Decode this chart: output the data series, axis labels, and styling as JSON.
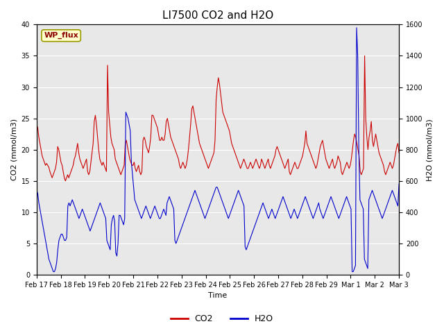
{
  "title": "LI7500 CO2 and H2O",
  "xlabel": "Time",
  "ylabel_left": "CO2 (mmol/m3)",
  "ylabel_right": "H2O (mmol/m3)",
  "ylim_left": [
    0,
    40
  ],
  "ylim_right": [
    0,
    1600
  ],
  "legend_label_co2": "CO2",
  "legend_label_h2o": "H2O",
  "site_label": "WP_flux",
  "co2_color": "#cc0000",
  "h2o_color": "#0000cc",
  "background_color": "#e8e8e8",
  "fig_background": "#ffffff",
  "title_fontsize": 11,
  "axis_fontsize": 8,
  "tick_fontsize": 7,
  "legend_fontsize": 9,
  "line_width": 0.8,
  "xtick_labels": [
    "Feb 17",
    "Feb 18",
    "Feb 19",
    "Feb 20",
    "Feb 21",
    "Feb 22",
    "Feb 23",
    "Feb 24",
    "Feb 25",
    "Feb 26",
    "Feb 27",
    "Feb 28",
    "Feb 29",
    "Mar 1",
    "Mar 2",
    "Mar 3"
  ],
  "xtick_positions": [
    0,
    1,
    2,
    3,
    4,
    5,
    6,
    7,
    8,
    9,
    10,
    11,
    12,
    13,
    14,
    15
  ],
  "co2_data": [
    24.0,
    23.5,
    22.0,
    21.0,
    20.0,
    19.0,
    18.5,
    18.0,
    17.5,
    17.8,
    17.5,
    17.2,
    16.5,
    16.0,
    15.5,
    16.0,
    16.5,
    17.0,
    18.0,
    20.5,
    20.0,
    19.0,
    18.0,
    17.5,
    16.5,
    15.5,
    15.0,
    15.5,
    16.0,
    15.5,
    16.0,
    16.5,
    17.0,
    17.5,
    18.5,
    19.0,
    20.0,
    21.0,
    19.5,
    18.5,
    18.0,
    17.5,
    17.0,
    17.5,
    18.0,
    18.5,
    16.5,
    16.0,
    16.5,
    18.0,
    19.5,
    21.0,
    24.5,
    25.5,
    24.0,
    22.0,
    20.0,
    18.5,
    18.0,
    17.5,
    18.0,
    17.5,
    17.0,
    16.5,
    33.5,
    26.0,
    24.0,
    22.0,
    21.0,
    20.5,
    20.0,
    18.5,
    18.0,
    17.5,
    17.0,
    16.5,
    16.0,
    16.5,
    17.0,
    17.5,
    21.0,
    21.5,
    20.5,
    19.5,
    18.5,
    18.0,
    17.5,
    17.5,
    18.0,
    17.0,
    16.5,
    17.0,
    17.5,
    16.5,
    16.0,
    16.5,
    21.5,
    22.0,
    21.5,
    20.5,
    20.0,
    19.5,
    20.5,
    22.0,
    25.5,
    25.5,
    25.0,
    24.5,
    24.0,
    23.5,
    22.5,
    21.5,
    21.5,
    22.0,
    21.5,
    21.5,
    22.5,
    24.5,
    25.0,
    24.0,
    23.0,
    22.0,
    21.5,
    21.0,
    20.5,
    20.0,
    19.5,
    19.0,
    18.5,
    17.5,
    17.0,
    17.5,
    18.0,
    17.5,
    17.0,
    17.5,
    18.5,
    20.0,
    22.0,
    24.0,
    26.5,
    27.0,
    26.0,
    25.0,
    24.0,
    23.0,
    22.0,
    21.0,
    20.5,
    20.0,
    19.5,
    19.0,
    18.5,
    18.0,
    17.5,
    17.0,
    17.5,
    18.0,
    18.5,
    19.0,
    19.5,
    21.5,
    28.0,
    30.0,
    31.5,
    30.5,
    29.0,
    27.5,
    26.0,
    25.5,
    25.0,
    24.5,
    24.0,
    23.5,
    23.0,
    22.0,
    21.0,
    20.5,
    20.0,
    19.5,
    19.0,
    18.5,
    18.0,
    17.5,
    17.0,
    17.5,
    18.0,
    18.5,
    18.0,
    17.5,
    17.0,
    17.0,
    17.5,
    18.0,
    17.5,
    17.0,
    17.5,
    18.0,
    18.5,
    18.0,
    17.5,
    17.0,
    17.5,
    18.5,
    18.0,
    17.5,
    17.0,
    17.5,
    18.0,
    18.5,
    17.5,
    17.0,
    17.5,
    18.0,
    18.5,
    19.0,
    20.0,
    20.5,
    20.0,
    19.5,
    19.0,
    18.5,
    18.0,
    17.5,
    17.0,
    17.5,
    18.0,
    18.5,
    16.5,
    16.0,
    16.5,
    17.0,
    17.5,
    18.0,
    17.5,
    17.0,
    17.0,
    17.5,
    18.0,
    18.5,
    19.0,
    20.0,
    21.0,
    23.0,
    21.0,
    20.5,
    20.0,
    19.5,
    19.0,
    18.5,
    18.0,
    17.5,
    17.0,
    17.5,
    18.5,
    19.5,
    20.5,
    21.0,
    21.5,
    20.5,
    19.5,
    18.5,
    18.0,
    17.5,
    17.0,
    17.5,
    18.0,
    18.5,
    17.5,
    17.0,
    17.5,
    18.0,
    19.0,
    18.5,
    18.0,
    16.5,
    16.0,
    16.5,
    17.0,
    17.5,
    18.0,
    17.5,
    17.0,
    17.5,
    18.5,
    20.0,
    21.5,
    22.5,
    22.0,
    21.0,
    20.0,
    19.0,
    16.5,
    16.0,
    16.5,
    17.0,
    35.0,
    25.0,
    22.0,
    20.0,
    22.0,
    23.0,
    24.5,
    21.5,
    20.5,
    21.5,
    22.5,
    21.5,
    20.5,
    19.5,
    19.0,
    18.5,
    18.0,
    17.5,
    16.5,
    16.0,
    16.5,
    17.0,
    17.5,
    18.0,
    17.5,
    17.0,
    17.5,
    18.5,
    19.5,
    20.5,
    21.0,
    19.5
  ],
  "h2o_data": [
    540,
    520,
    460,
    420,
    380,
    340,
    300,
    260,
    220,
    180,
    140,
    100,
    80,
    60,
    40,
    20,
    20,
    40,
    80,
    160,
    220,
    240,
    260,
    260,
    240,
    220,
    220,
    240,
    440,
    460,
    440,
    460,
    480,
    460,
    440,
    420,
    400,
    380,
    360,
    380,
    400,
    420,
    400,
    380,
    360,
    340,
    320,
    300,
    280,
    300,
    320,
    340,
    360,
    380,
    400,
    420,
    440,
    460,
    440,
    420,
    400,
    380,
    360,
    220,
    200,
    180,
    160,
    320,
    360,
    380,
    340,
    140,
    120,
    200,
    380,
    380,
    360,
    340,
    320,
    360,
    1040,
    1020,
    1000,
    960,
    920,
    720,
    640,
    560,
    480,
    460,
    440,
    420,
    400,
    380,
    360,
    380,
    400,
    420,
    440,
    420,
    400,
    380,
    360,
    380,
    400,
    420,
    440,
    420,
    400,
    380,
    360,
    360,
    380,
    400,
    420,
    400,
    380,
    460,
    480,
    500,
    480,
    460,
    440,
    420,
    220,
    200,
    220,
    240,
    260,
    280,
    300,
    320,
    340,
    360,
    380,
    400,
    420,
    440,
    460,
    480,
    500,
    520,
    540,
    520,
    500,
    480,
    460,
    440,
    420,
    400,
    380,
    360,
    380,
    400,
    420,
    440,
    460,
    480,
    500,
    520,
    540,
    560,
    560,
    540,
    520,
    500,
    480,
    460,
    440,
    420,
    400,
    380,
    360,
    380,
    400,
    420,
    440,
    460,
    480,
    500,
    520,
    540,
    520,
    500,
    480,
    460,
    440,
    180,
    160,
    180,
    200,
    220,
    240,
    260,
    280,
    300,
    320,
    340,
    360,
    380,
    400,
    420,
    440,
    460,
    440,
    420,
    400,
    380,
    360,
    380,
    400,
    420,
    400,
    380,
    360,
    380,
    400,
    420,
    440,
    460,
    480,
    500,
    480,
    460,
    440,
    420,
    400,
    380,
    360,
    380,
    400,
    420,
    400,
    380,
    360,
    380,
    400,
    420,
    440,
    460,
    480,
    500,
    480,
    460,
    440,
    420,
    400,
    380,
    360,
    380,
    400,
    420,
    440,
    460,
    420,
    400,
    380,
    360,
    380,
    400,
    420,
    440,
    460,
    480,
    500,
    480,
    460,
    440,
    420,
    400,
    380,
    360,
    380,
    400,
    420,
    440,
    460,
    480,
    500,
    480,
    460,
    440,
    420,
    20,
    20,
    40,
    60,
    1580,
    1400,
    800,
    480,
    460,
    440,
    420,
    100,
    80,
    60,
    40,
    480,
    500,
    520,
    540,
    520,
    500,
    480,
    460,
    440,
    420,
    400,
    380,
    360,
    380,
    400,
    420,
    440,
    460,
    480,
    500,
    520,
    540,
    520,
    500,
    480,
    460,
    440,
    580
  ]
}
